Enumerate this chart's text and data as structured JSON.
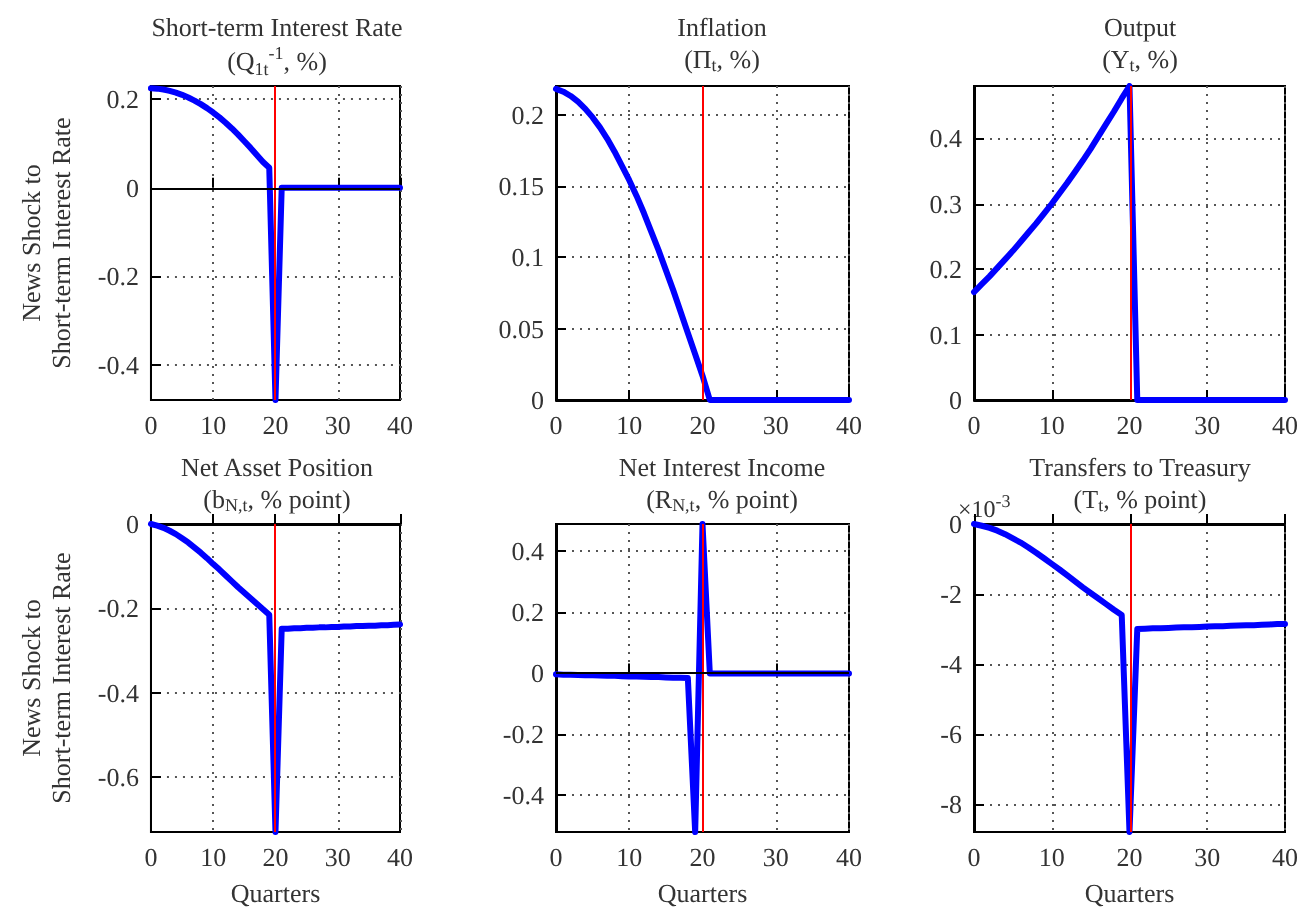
{
  "chart_data": [
    {
      "type": "line",
      "title": "Short-term Interest Rate",
      "subtitle": "(Q$_{1t}$$^{-1}$, %)",
      "ylabel": "News Shock to\nShort-term Interest Rate",
      "x": [
        0,
        1,
        2,
        3,
        4,
        5,
        6,
        7,
        8,
        9,
        10,
        11,
        12,
        13,
        14,
        15,
        16,
        17,
        18,
        19,
        20,
        21,
        22,
        23,
        24,
        25,
        26,
        27,
        28,
        29,
        30,
        31,
        32,
        33,
        34,
        35,
        36,
        37,
        38,
        39,
        40
      ],
      "series": [
        {
          "color": "#0000ff",
          "values": [
            0.225,
            0.224,
            0.222,
            0.219,
            0.215,
            0.21,
            0.204,
            0.197,
            0.189,
            0.18,
            0.17,
            0.159,
            0.147,
            0.134,
            0.12,
            0.105,
            0.09,
            0.074,
            0.058,
            0.045,
            -0.48,
            0,
            0,
            0,
            0,
            0,
            0,
            0,
            0,
            0,
            0,
            0,
            0,
            0,
            0,
            0,
            0,
            0,
            0,
            0,
            0
          ]
        }
      ],
      "xlim": [
        0,
        40
      ],
      "xticks": [
        0,
        10,
        20,
        30,
        40
      ],
      "ylim": [
        -0.48,
        0.23
      ],
      "yticks": [
        -0.4,
        -0.2,
        0,
        0.2
      ],
      "grid": true,
      "marker": "none",
      "line_style": "solid",
      "ref_lines": [
        {
          "axis": "x",
          "value": 20,
          "color": "#ff0000"
        },
        {
          "axis": "y",
          "value": 0,
          "color": "#000000"
        }
      ]
    },
    {
      "type": "line",
      "title": "Inflation",
      "subtitle": "(Π$_{t}$, %)",
      "x": [
        0,
        1,
        2,
        3,
        4,
        5,
        6,
        7,
        8,
        9,
        10,
        11,
        12,
        13,
        14,
        15,
        16,
        17,
        18,
        19,
        20,
        21,
        22,
        23,
        24,
        25,
        26,
        27,
        28,
        29,
        30,
        31,
        32,
        33,
        34,
        35,
        36,
        37,
        38,
        39,
        40
      ],
      "series": [
        {
          "color": "#0000ff",
          "values": [
            0.218,
            0.216,
            0.213,
            0.209,
            0.204,
            0.198,
            0.191,
            0.183,
            0.174,
            0.164,
            0.154,
            0.143,
            0.131,
            0.118,
            0.105,
            0.091,
            0.077,
            0.062,
            0.047,
            0.032,
            0.017,
            0,
            0,
            0,
            0,
            0,
            0,
            0,
            0,
            0,
            0,
            0,
            0,
            0,
            0,
            0,
            0,
            0,
            0,
            0,
            0
          ]
        }
      ],
      "xlim": [
        0,
        40
      ],
      "xticks": [
        0,
        10,
        20,
        30,
        40
      ],
      "ylim": [
        0,
        0.22
      ],
      "yticks": [
        0,
        0.05,
        0.1,
        0.15,
        0.2
      ],
      "grid": true,
      "marker": "none",
      "line_style": "solid",
      "ref_lines": [
        {
          "axis": "x",
          "value": 20,
          "color": "#ff0000"
        }
      ]
    },
    {
      "type": "line",
      "title": "Output",
      "subtitle": "(Y$_{t}$, %)",
      "x": [
        0,
        1,
        2,
        3,
        4,
        5,
        6,
        7,
        8,
        9,
        10,
        11,
        12,
        13,
        14,
        15,
        16,
        17,
        18,
        19,
        20,
        21,
        22,
        23,
        24,
        25,
        26,
        27,
        28,
        29,
        30,
        31,
        32,
        33,
        34,
        35,
        36,
        37,
        38,
        39,
        40
      ],
      "series": [
        {
          "color": "#0000ff",
          "values": [
            0.165,
            0.177,
            0.189,
            0.202,
            0.215,
            0.228,
            0.242,
            0.256,
            0.27,
            0.285,
            0.3,
            0.316,
            0.332,
            0.349,
            0.366,
            0.384,
            0.403,
            0.422,
            0.441,
            0.461,
            0.48,
            0,
            0,
            0,
            0,
            0,
            0,
            0,
            0,
            0,
            0,
            0,
            0,
            0,
            0,
            0,
            0,
            0,
            0,
            0,
            0
          ]
        }
      ],
      "xlim": [
        0,
        40
      ],
      "xticks": [
        0,
        10,
        20,
        30,
        40
      ],
      "ylim": [
        0,
        0.48
      ],
      "yticks": [
        0,
        0.1,
        0.2,
        0.3,
        0.4
      ],
      "grid": true,
      "marker": "none",
      "line_style": "solid",
      "ref_lines": [
        {
          "axis": "x",
          "value": 20,
          "color": "#ff0000"
        }
      ]
    },
    {
      "type": "line",
      "title": "Net Asset Position",
      "subtitle": "(b$_{N,t}$, % point)",
      "ylabel": "News Shock to\nShort-term Interest Rate",
      "xlabel": "Quarters",
      "x": [
        0,
        1,
        2,
        3,
        4,
        5,
        6,
        7,
        8,
        9,
        10,
        11,
        12,
        13,
        14,
        15,
        16,
        17,
        18,
        19,
        20,
        21,
        22,
        23,
        24,
        25,
        26,
        27,
        28,
        29,
        30,
        31,
        32,
        33,
        34,
        35,
        36,
        37,
        38,
        39,
        40
      ],
      "series": [
        {
          "color": "#0000ff",
          "values": [
            0,
            -0.004,
            -0.009,
            -0.016,
            -0.024,
            -0.034,
            -0.044,
            -0.056,
            -0.068,
            -0.081,
            -0.095,
            -0.108,
            -0.122,
            -0.136,
            -0.15,
            -0.163,
            -0.176,
            -0.189,
            -0.202,
            -0.215,
            -0.73,
            -0.248,
            -0.248,
            -0.247,
            -0.247,
            -0.246,
            -0.246,
            -0.245,
            -0.245,
            -0.244,
            -0.244,
            -0.243,
            -0.243,
            -0.242,
            -0.242,
            -0.241,
            -0.241,
            -0.24,
            -0.24,
            -0.239,
            -0.238
          ]
        }
      ],
      "xlim": [
        0,
        40
      ],
      "xticks": [
        0,
        10,
        20,
        30,
        40
      ],
      "ylim": [
        -0.73,
        0
      ],
      "yticks": [
        -0.6,
        -0.4,
        -0.2,
        0
      ],
      "grid": true,
      "marker": "none",
      "line_style": "solid",
      "ref_lines": [
        {
          "axis": "x",
          "value": 20,
          "color": "#ff0000"
        }
      ]
    },
    {
      "type": "line",
      "title": "Net Interest Income",
      "subtitle": "(R$_{N,t}$, % point)",
      "xlabel": "Quarters",
      "x": [
        0,
        1,
        2,
        3,
        4,
        5,
        6,
        7,
        8,
        9,
        10,
        11,
        12,
        13,
        14,
        15,
        16,
        17,
        18,
        19,
        20,
        21,
        22,
        23,
        24,
        25,
        26,
        27,
        28,
        29,
        30,
        31,
        32,
        33,
        34,
        35,
        36,
        37,
        38,
        39,
        40
      ],
      "series": [
        {
          "color": "#0000ff",
          "values": [
            -0.003,
            -0.004,
            -0.004,
            -0.005,
            -0.006,
            -0.006,
            -0.007,
            -0.008,
            -0.008,
            -0.009,
            -0.01,
            -0.01,
            -0.011,
            -0.012,
            -0.012,
            -0.013,
            -0.014,
            -0.014,
            -0.015,
            -0.52,
            0.49,
            0,
            0,
            0,
            0,
            0,
            0,
            0,
            0,
            0,
            0,
            0,
            0,
            0,
            0,
            0,
            0,
            0,
            0,
            0,
            0
          ]
        }
      ],
      "xlim": [
        0,
        40
      ],
      "xticks": [
        0,
        10,
        20,
        30,
        40
      ],
      "ylim": [
        -0.52,
        0.49
      ],
      "yticks": [
        -0.4,
        -0.2,
        0,
        0.2,
        0.4
      ],
      "grid": true,
      "marker": "none",
      "line_style": "solid",
      "ref_lines": [
        {
          "axis": "x",
          "value": 20,
          "color": "#ff0000"
        },
        {
          "axis": "y",
          "value": 0,
          "color": "#000000"
        }
      ]
    },
    {
      "type": "line",
      "title": "Transfers to Treasury",
      "subtitle": "(T$_{t}$, % point)",
      "xlabel": "Quarters",
      "annotations": [
        "×10$^{-3}$"
      ],
      "x": [
        0,
        1,
        2,
        3,
        4,
        5,
        6,
        7,
        8,
        9,
        10,
        11,
        12,
        13,
        14,
        15,
        16,
        17,
        18,
        19,
        20,
        21,
        22,
        23,
        24,
        25,
        26,
        27,
        28,
        29,
        30,
        31,
        32,
        33,
        34,
        35,
        36,
        37,
        38,
        39,
        40
      ],
      "series": [
        {
          "color": "#0000ff",
          "values": [
            0,
            -0.05,
            -0.11,
            -0.19,
            -0.29,
            -0.41,
            -0.53,
            -0.67,
            -0.82,
            -0.98,
            -1.14,
            -1.3,
            -1.47,
            -1.64,
            -1.81,
            -1.97,
            -2.13,
            -2.29,
            -2.45,
            -2.6,
            -8.8,
            -3.0,
            -2.99,
            -2.98,
            -2.98,
            -2.97,
            -2.96,
            -2.95,
            -2.95,
            -2.94,
            -2.93,
            -2.92,
            -2.92,
            -2.91,
            -2.9,
            -2.89,
            -2.89,
            -2.88,
            -2.87,
            -2.86,
            -2.86
          ]
        }
      ],
      "xlim": [
        0,
        40
      ],
      "xticks": [
        0,
        10,
        20,
        30,
        40
      ],
      "ylim": [
        -8.8,
        0
      ],
      "yticks": [
        -8,
        -6,
        -4,
        -2,
        0
      ],
      "grid": true,
      "marker": "none",
      "line_style": "solid",
      "ref_lines": [
        {
          "axis": "x",
          "value": 20,
          "color": "#ff0000"
        }
      ]
    }
  ]
}
